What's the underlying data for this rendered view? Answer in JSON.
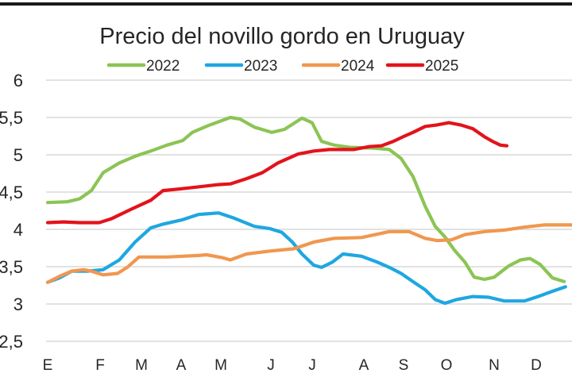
{
  "chart_data": {
    "type": "line",
    "title": "Precio del novillo gordo en Uruguay",
    "xlabel": "",
    "ylabel": "",
    "x_unit": "month index (0 = E/enero start)",
    "categories": [
      "E",
      "F",
      "M",
      "A",
      "M",
      "J",
      "J",
      "A",
      "S",
      "O",
      "N",
      "D"
    ],
    "ylim": [
      2.5,
      6
    ],
    "yticks": [
      2.5,
      3,
      3.5,
      4,
      4.5,
      5,
      5.5,
      6
    ],
    "ytick_labels": [
      "2,5",
      "3",
      "3,5",
      "4",
      "4,5",
      "5",
      "5,5",
      "6"
    ],
    "grid": true,
    "legend_position": "top",
    "series": [
      {
        "name": "2022",
        "color": "#8cc454",
        "points": [
          [
            0,
            4.36
          ],
          [
            0.45,
            4.37
          ],
          [
            0.73,
            4.41
          ],
          [
            1.0,
            4.52
          ],
          [
            1.27,
            4.76
          ],
          [
            1.64,
            4.89
          ],
          [
            2.0,
            4.98
          ],
          [
            2.36,
            5.05
          ],
          [
            2.73,
            5.13
          ],
          [
            3.09,
            5.19
          ],
          [
            3.31,
            5.3
          ],
          [
            3.67,
            5.39
          ],
          [
            4.18,
            5.5
          ],
          [
            4.4,
            5.48
          ],
          [
            4.73,
            5.37
          ],
          [
            5.13,
            5.3
          ],
          [
            5.42,
            5.34
          ],
          [
            5.82,
            5.49
          ],
          [
            6.05,
            5.43
          ],
          [
            6.27,
            5.18
          ],
          [
            6.55,
            5.13
          ],
          [
            6.91,
            5.1
          ],
          [
            7.45,
            5.09
          ],
          [
            7.82,
            5.07
          ],
          [
            8.09,
            4.95
          ],
          [
            8.36,
            4.71
          ],
          [
            8.64,
            4.31
          ],
          [
            8.87,
            4.04
          ],
          [
            9.09,
            3.9
          ],
          [
            9.31,
            3.72
          ],
          [
            9.55,
            3.56
          ],
          [
            9.76,
            3.36
          ],
          [
            10.0,
            3.33
          ],
          [
            10.22,
            3.36
          ],
          [
            10.55,
            3.51
          ],
          [
            10.82,
            3.59
          ],
          [
            11.04,
            3.61
          ],
          [
            11.27,
            3.53
          ],
          [
            11.55,
            3.35
          ],
          [
            11.82,
            3.3
          ]
        ]
      },
      {
        "name": "2023",
        "color": "#1ea7e1",
        "points": [
          [
            0,
            3.29
          ],
          [
            0.27,
            3.35
          ],
          [
            0.55,
            3.44
          ],
          [
            0.91,
            3.44
          ],
          [
            1.27,
            3.46
          ],
          [
            1.64,
            3.59
          ],
          [
            2.0,
            3.83
          ],
          [
            2.36,
            4.02
          ],
          [
            2.64,
            4.07
          ],
          [
            3.09,
            4.13
          ],
          [
            3.45,
            4.2
          ],
          [
            3.91,
            4.22
          ],
          [
            4.27,
            4.15
          ],
          [
            4.73,
            4.04
          ],
          [
            5.09,
            4.01
          ],
          [
            5.36,
            3.96
          ],
          [
            5.6,
            3.83
          ],
          [
            5.82,
            3.67
          ],
          [
            6.09,
            3.52
          ],
          [
            6.27,
            3.49
          ],
          [
            6.51,
            3.56
          ],
          [
            6.76,
            3.67
          ],
          [
            7.18,
            3.64
          ],
          [
            7.55,
            3.56
          ],
          [
            7.82,
            3.49
          ],
          [
            8.09,
            3.41
          ],
          [
            8.36,
            3.3
          ],
          [
            8.64,
            3.19
          ],
          [
            8.87,
            3.06
          ],
          [
            9.09,
            3.01
          ],
          [
            9.36,
            3.06
          ],
          [
            9.73,
            3.1
          ],
          [
            10.09,
            3.09
          ],
          [
            10.45,
            3.04
          ],
          [
            10.91,
            3.04
          ],
          [
            11.27,
            3.11
          ],
          [
            11.55,
            3.17
          ],
          [
            11.85,
            3.23
          ]
        ]
      },
      {
        "name": "2024",
        "color": "#f0974f",
        "points": [
          [
            0,
            3.29
          ],
          [
            0.27,
            3.37
          ],
          [
            0.55,
            3.44
          ],
          [
            0.82,
            3.46
          ],
          [
            1.0,
            3.44
          ],
          [
            1.27,
            3.39
          ],
          [
            1.6,
            3.41
          ],
          [
            1.82,
            3.49
          ],
          [
            2.09,
            3.63
          ],
          [
            2.73,
            3.63
          ],
          [
            3.45,
            3.65
          ],
          [
            3.64,
            3.66
          ],
          [
            4.0,
            3.62
          ],
          [
            4.18,
            3.59
          ],
          [
            4.55,
            3.67
          ],
          [
            5.09,
            3.71
          ],
          [
            5.64,
            3.74
          ],
          [
            6.09,
            3.83
          ],
          [
            6.55,
            3.88
          ],
          [
            7.18,
            3.89
          ],
          [
            7.82,
            3.97
          ],
          [
            8.27,
            3.97
          ],
          [
            8.64,
            3.88
          ],
          [
            8.91,
            3.85
          ],
          [
            9.24,
            3.86
          ],
          [
            9.55,
            3.93
          ],
          [
            10.0,
            3.97
          ],
          [
            10.45,
            3.99
          ],
          [
            10.91,
            4.03
          ],
          [
            11.36,
            4.06
          ],
          [
            12.0,
            4.06
          ]
        ]
      },
      {
        "name": "2025",
        "color": "#e3131b",
        "points": [
          [
            0,
            4.09
          ],
          [
            0.36,
            4.1
          ],
          [
            0.73,
            4.09
          ],
          [
            1.18,
            4.09
          ],
          [
            1.45,
            4.14
          ],
          [
            1.91,
            4.27
          ],
          [
            2.36,
            4.39
          ],
          [
            2.64,
            4.52
          ],
          [
            3.0,
            4.54
          ],
          [
            3.45,
            4.57
          ],
          [
            3.91,
            4.6
          ],
          [
            4.18,
            4.61
          ],
          [
            4.55,
            4.68
          ],
          [
            4.91,
            4.76
          ],
          [
            5.27,
            4.89
          ],
          [
            5.73,
            5.01
          ],
          [
            6.09,
            5.05
          ],
          [
            6.45,
            5.07
          ],
          [
            7.0,
            5.07
          ],
          [
            7.36,
            5.11
          ],
          [
            7.64,
            5.12
          ],
          [
            7.91,
            5.18
          ],
          [
            8.13,
            5.24
          ],
          [
            8.36,
            5.3
          ],
          [
            8.64,
            5.38
          ],
          [
            8.91,
            5.4
          ],
          [
            9.18,
            5.43
          ],
          [
            9.45,
            5.4
          ],
          [
            9.73,
            5.35
          ],
          [
            10.0,
            5.24
          ],
          [
            10.18,
            5.18
          ],
          [
            10.36,
            5.13
          ],
          [
            10.51,
            5.12
          ]
        ]
      }
    ]
  }
}
